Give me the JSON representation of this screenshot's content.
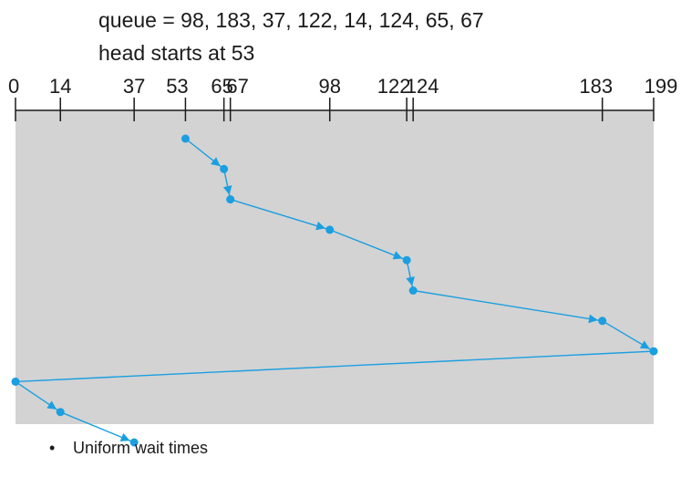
{
  "header": {
    "queue_line": "queue = 98, 183, 37, 122, 14, 124, 65, 67",
    "head_line": "head starts at 53"
  },
  "bullet": {
    "symbol": "•",
    "text": "Uniform wait times"
  },
  "chart_data": {
    "type": "line",
    "axis": {
      "min": 0,
      "max": 199,
      "ticks": [
        0,
        14,
        37,
        53,
        65,
        67,
        98,
        122,
        124,
        183,
        199
      ]
    },
    "path": [
      53,
      65,
      67,
      98,
      122,
      124,
      183,
      199,
      0,
      14,
      37
    ],
    "arrow_after": [
      0,
      1,
      2,
      3,
      4,
      5,
      6,
      8,
      9
    ],
    "colors": {
      "path": "#1a9fe0",
      "panel": "#d3d3d3",
      "axis": "#1a1a1a"
    }
  }
}
